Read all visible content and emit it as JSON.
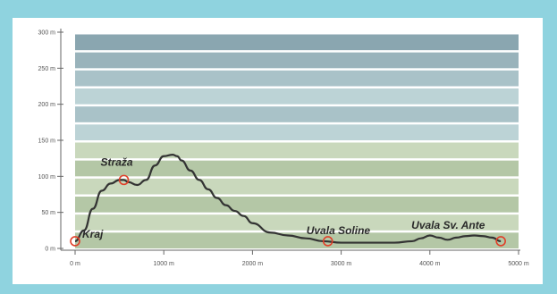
{
  "chart_data": {
    "type": "area",
    "title": "",
    "xlabel": "",
    "ylabel": "",
    "xlim": [
      0,
      5000
    ],
    "ylim": [
      0,
      300
    ],
    "x_ticks": [
      {
        "value": 0,
        "label": "0 m"
      },
      {
        "value": 1000,
        "label": "1000 m"
      },
      {
        "value": 2000,
        "label": "2000 m"
      },
      {
        "value": 3000,
        "label": "3000 m"
      },
      {
        "value": 4000,
        "label": "4000 m"
      },
      {
        "value": 5000,
        "label": "5000 m"
      }
    ],
    "y_ticks": [
      {
        "value": 0,
        "label": "0 m"
      },
      {
        "value": 50,
        "label": "50 m"
      },
      {
        "value": 100,
        "label": "100 m"
      },
      {
        "value": 150,
        "label": "150 m"
      },
      {
        "value": 200,
        "label": "200 m"
      },
      {
        "value": 250,
        "label": "250 m"
      },
      {
        "value": 300,
        "label": "300 m"
      }
    ],
    "bands": [
      {
        "from": 0,
        "to": 25,
        "color": "#b4c7a6"
      },
      {
        "from": 25,
        "to": 50,
        "color": "#c9d8bc"
      },
      {
        "from": 50,
        "to": 75,
        "color": "#b4c7a6"
      },
      {
        "from": 75,
        "to": 100,
        "color": "#c9d8bc"
      },
      {
        "from": 100,
        "to": 125,
        "color": "#b4c7a6"
      },
      {
        "from": 125,
        "to": 150,
        "color": "#c9d8bc"
      },
      {
        "from": 150,
        "to": 175,
        "color": "#bcd3d6"
      },
      {
        "from": 175,
        "to": 200,
        "color": "#a9c2c8"
      },
      {
        "from": 200,
        "to": 225,
        "color": "#bcd3d6"
      },
      {
        "from": 225,
        "to": 250,
        "color": "#a9c2c8"
      },
      {
        "from": 250,
        "to": 275,
        "color": "#99b3bb"
      },
      {
        "from": 275,
        "to": 300,
        "color": "#8aa6b0"
      }
    ],
    "series": [
      {
        "x": [
          0,
          100,
          200,
          300,
          400,
          500,
          550,
          600,
          700,
          800,
          900,
          1000,
          1100,
          1150,
          1200,
          1300,
          1400,
          1500,
          1600,
          1700,
          1800,
          1900,
          2000,
          2200,
          2400,
          2600,
          2800,
          3000,
          3200,
          3400,
          3600,
          3800,
          3900,
          4000,
          4100,
          4200,
          4300,
          4400,
          4500,
          4600,
          4700,
          4800
        ],
        "y": [
          10,
          25,
          55,
          80,
          90,
          95,
          95,
          92,
          88,
          95,
          115,
          128,
          130,
          128,
          122,
          108,
          95,
          82,
          70,
          60,
          52,
          45,
          35,
          22,
          18,
          14,
          10,
          8,
          8,
          8,
          8,
          10,
          14,
          18,
          15,
          12,
          15,
          17,
          18,
          17,
          15,
          10
        ]
      }
    ],
    "waypoints": [
      {
        "name": "Kraj",
        "x": 0,
        "y": 10
      },
      {
        "name": "Straža",
        "x": 550,
        "y": 95
      },
      {
        "name": "Uvala Soline",
        "x": 2850,
        "y": 10
      },
      {
        "name": "Uvala Sv. Ante",
        "x": 4800,
        "y": 10
      }
    ],
    "grid": false,
    "colors": {
      "line": "#333333",
      "marker": "#e0402a"
    }
  }
}
